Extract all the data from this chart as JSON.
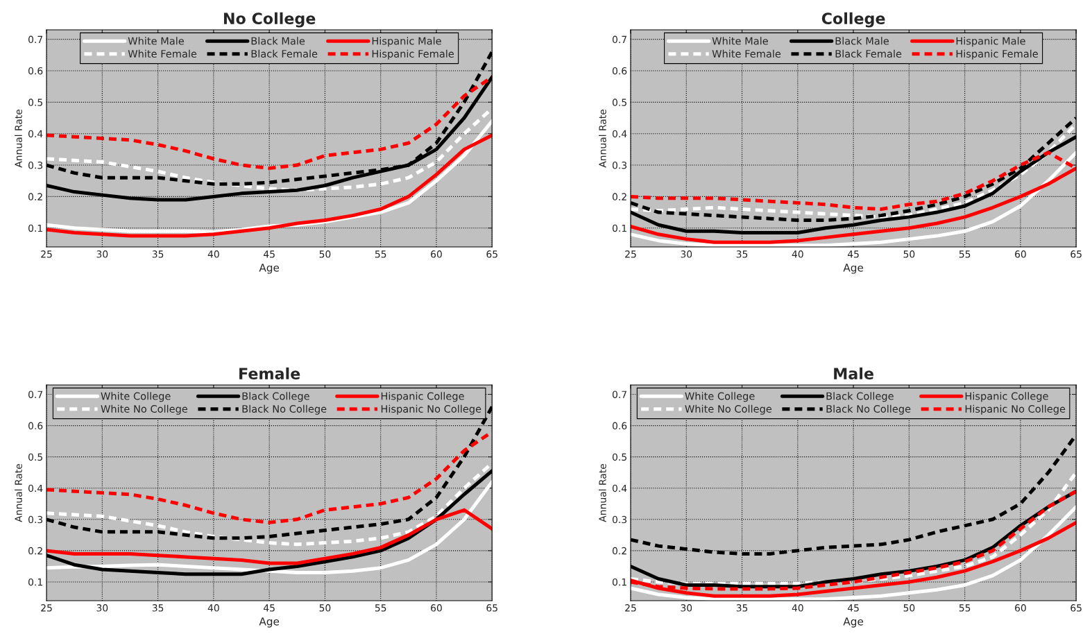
{
  "chart_data": [
    {
      "type": "line",
      "title": "No College",
      "xlabel": "Age",
      "ylabel": "Annual Rate",
      "x": [
        25,
        27.5,
        30,
        32.5,
        35,
        37.5,
        40,
        42.5,
        45,
        47.5,
        50,
        52.5,
        55,
        57.5,
        60,
        62.5,
        65
      ],
      "xlim": [
        25,
        65
      ],
      "xticks": [
        25,
        30,
        35,
        40,
        45,
        50,
        55,
        60,
        65
      ],
      "ylim": [
        0.04,
        0.73
      ],
      "yticks": [
        0.1,
        0.2,
        0.3,
        0.4,
        0.5,
        0.6,
        0.7
      ],
      "grid": true,
      "legend": "top",
      "series": [
        {
          "name": "White Male",
          "color": "#ffffff",
          "line_style": "solid",
          "values": [
            0.11,
            0.1,
            0.095,
            0.09,
            0.09,
            0.09,
            0.088,
            0.095,
            0.106,
            0.11,
            0.12,
            0.135,
            0.15,
            0.18,
            0.25,
            0.33,
            0.44
          ]
        },
        {
          "name": "White Female",
          "color": "#ffffff",
          "line_style": "dashed",
          "values": [
            0.32,
            0.315,
            0.31,
            0.295,
            0.28,
            0.26,
            0.245,
            0.235,
            0.225,
            0.22,
            0.225,
            0.23,
            0.24,
            0.26,
            0.31,
            0.4,
            0.48
          ]
        },
        {
          "name": "Black Male",
          "color": "#000000",
          "line_style": "solid",
          "values": [
            0.235,
            0.215,
            0.205,
            0.195,
            0.19,
            0.19,
            0.2,
            0.21,
            0.215,
            0.22,
            0.235,
            0.26,
            0.28,
            0.3,
            0.35,
            0.45,
            0.58
          ]
        },
        {
          "name": "Black Female",
          "color": "#000000",
          "line_style": "dashed",
          "values": [
            0.3,
            0.275,
            0.26,
            0.26,
            0.26,
            0.25,
            0.24,
            0.24,
            0.245,
            0.255,
            0.265,
            0.275,
            0.285,
            0.3,
            0.37,
            0.5,
            0.66
          ]
        },
        {
          "name": "Hispanic Male",
          "color": "#ff0000",
          "line_style": "solid",
          "values": [
            0.095,
            0.085,
            0.08,
            0.075,
            0.075,
            0.075,
            0.08,
            0.09,
            0.1,
            0.115,
            0.125,
            0.14,
            0.16,
            0.2,
            0.27,
            0.35,
            0.395
          ]
        },
        {
          "name": "Hispanic Female",
          "color": "#ff0000",
          "line_style": "dashed",
          "values": [
            0.395,
            0.39,
            0.385,
            0.38,
            0.365,
            0.345,
            0.32,
            0.3,
            0.29,
            0.3,
            0.33,
            0.34,
            0.35,
            0.37,
            0.43,
            0.52,
            0.58
          ]
        }
      ]
    },
    {
      "type": "line",
      "title": "College",
      "xlabel": "Age",
      "ylabel": "Annual Rate",
      "x": [
        25,
        27.5,
        30,
        32.5,
        35,
        37.5,
        40,
        42.5,
        45,
        47.5,
        50,
        52.5,
        55,
        57.5,
        60,
        62.5,
        65
      ],
      "xlim": [
        25,
        65
      ],
      "xticks": [
        25,
        30,
        35,
        40,
        45,
        50,
        55,
        60,
        65
      ],
      "ylim": [
        0.04,
        0.73
      ],
      "yticks": [
        0.1,
        0.2,
        0.3,
        0.4,
        0.5,
        0.6,
        0.7
      ],
      "grid": true,
      "legend": "top",
      "series": [
        {
          "name": "White Male",
          "color": "#ffffff",
          "line_style": "solid",
          "values": [
            0.08,
            0.06,
            0.05,
            0.045,
            0.045,
            0.045,
            0.045,
            0.045,
            0.05,
            0.055,
            0.065,
            0.075,
            0.09,
            0.12,
            0.17,
            0.25,
            0.34
          ]
        },
        {
          "name": "White Female",
          "color": "#ffffff",
          "line_style": "dashed",
          "values": [
            0.16,
            0.155,
            0.16,
            0.165,
            0.16,
            0.155,
            0.15,
            0.145,
            0.14,
            0.135,
            0.14,
            0.16,
            0.18,
            0.22,
            0.27,
            0.34,
            0.43
          ]
        },
        {
          "name": "Black Male",
          "color": "#000000",
          "line_style": "solid",
          "values": [
            0.15,
            0.11,
            0.09,
            0.09,
            0.085,
            0.085,
            0.085,
            0.1,
            0.11,
            0.125,
            0.135,
            0.15,
            0.17,
            0.21,
            0.28,
            0.34,
            0.39
          ]
        },
        {
          "name": "Black Female",
          "color": "#000000",
          "line_style": "dashed",
          "values": [
            0.18,
            0.15,
            0.145,
            0.14,
            0.135,
            0.13,
            0.125,
            0.125,
            0.13,
            0.14,
            0.155,
            0.175,
            0.2,
            0.24,
            0.29,
            0.37,
            0.45
          ]
        },
        {
          "name": "Hispanic Male",
          "color": "#ff0000",
          "line_style": "solid",
          "values": [
            0.105,
            0.08,
            0.065,
            0.055,
            0.055,
            0.055,
            0.06,
            0.07,
            0.08,
            0.09,
            0.1,
            0.115,
            0.135,
            0.165,
            0.2,
            0.24,
            0.29
          ]
        },
        {
          "name": "Hispanic Female",
          "color": "#ff0000",
          "line_style": "dashed",
          "values": [
            0.2,
            0.195,
            0.195,
            0.195,
            0.19,
            0.185,
            0.18,
            0.175,
            0.165,
            0.16,
            0.175,
            0.185,
            0.21,
            0.25,
            0.3,
            0.34,
            0.29
          ]
        }
      ]
    },
    {
      "type": "line",
      "title": "Female",
      "xlabel": "Age",
      "ylabel": "Annual Rate",
      "x": [
        25,
        27.5,
        30,
        32.5,
        35,
        37.5,
        40,
        42.5,
        45,
        47.5,
        50,
        52.5,
        55,
        57.5,
        60,
        62.5,
        65
      ],
      "xlim": [
        25,
        65
      ],
      "xticks": [
        25,
        30,
        35,
        40,
        45,
        50,
        55,
        60,
        65
      ],
      "ylim": [
        0.04,
        0.73
      ],
      "yticks": [
        0.1,
        0.2,
        0.3,
        0.4,
        0.5,
        0.6,
        0.7
      ],
      "grid": true,
      "legend": "top",
      "series": [
        {
          "name": "White College",
          "color": "#ffffff",
          "line_style": "solid",
          "values": [
            0.145,
            0.148,
            0.15,
            0.153,
            0.155,
            0.15,
            0.145,
            0.14,
            0.135,
            0.13,
            0.13,
            0.135,
            0.145,
            0.17,
            0.22,
            0.3,
            0.42
          ]
        },
        {
          "name": "White No College",
          "color": "#ffffff",
          "line_style": "dashed",
          "values": [
            0.32,
            0.315,
            0.31,
            0.295,
            0.28,
            0.26,
            0.245,
            0.235,
            0.225,
            0.22,
            0.225,
            0.23,
            0.24,
            0.26,
            0.31,
            0.4,
            0.48
          ]
        },
        {
          "name": "Black College",
          "color": "#000000",
          "line_style": "solid",
          "values": [
            0.185,
            0.155,
            0.14,
            0.135,
            0.13,
            0.125,
            0.125,
            0.125,
            0.14,
            0.15,
            0.165,
            0.18,
            0.2,
            0.24,
            0.3,
            0.38,
            0.455
          ]
        },
        {
          "name": "Black No College",
          "color": "#000000",
          "line_style": "dashed",
          "values": [
            0.3,
            0.275,
            0.26,
            0.26,
            0.26,
            0.25,
            0.24,
            0.24,
            0.245,
            0.255,
            0.265,
            0.275,
            0.285,
            0.3,
            0.37,
            0.5,
            0.66
          ]
        },
        {
          "name": "Hispanic College",
          "color": "#ff0000",
          "line_style": "solid",
          "values": [
            0.2,
            0.19,
            0.19,
            0.19,
            0.185,
            0.18,
            0.175,
            0.17,
            0.16,
            0.16,
            0.175,
            0.19,
            0.21,
            0.25,
            0.3,
            0.33,
            0.27
          ]
        },
        {
          "name": "Hispanic No College",
          "color": "#ff0000",
          "line_style": "dashed",
          "values": [
            0.395,
            0.39,
            0.385,
            0.38,
            0.365,
            0.345,
            0.32,
            0.3,
            0.29,
            0.3,
            0.33,
            0.34,
            0.35,
            0.37,
            0.43,
            0.52,
            0.58
          ]
        }
      ]
    },
    {
      "type": "line",
      "title": "Male",
      "xlabel": "Age",
      "ylabel": "Annual Rate",
      "x": [
        25,
        27.5,
        30,
        32.5,
        35,
        37.5,
        40,
        42.5,
        45,
        47.5,
        50,
        52.5,
        55,
        57.5,
        60,
        62.5,
        65
      ],
      "xlim": [
        25,
        65
      ],
      "xticks": [
        25,
        30,
        35,
        40,
        45,
        50,
        55,
        60,
        65
      ],
      "ylim": [
        0.04,
        0.73
      ],
      "yticks": [
        0.1,
        0.2,
        0.3,
        0.4,
        0.5,
        0.6,
        0.7
      ],
      "grid": true,
      "legend": "top",
      "series": [
        {
          "name": "White College",
          "color": "#ffffff",
          "line_style": "solid",
          "values": [
            0.08,
            0.06,
            0.05,
            0.045,
            0.045,
            0.045,
            0.045,
            0.045,
            0.05,
            0.055,
            0.065,
            0.075,
            0.09,
            0.12,
            0.17,
            0.25,
            0.34
          ]
        },
        {
          "name": "White No College",
          "color": "#ffffff",
          "line_style": "dashed",
          "values": [
            0.11,
            0.1,
            0.095,
            0.095,
            0.095,
            0.095,
            0.095,
            0.1,
            0.1,
            0.11,
            0.12,
            0.135,
            0.15,
            0.18,
            0.25,
            0.33,
            0.45
          ]
        },
        {
          "name": "Black College",
          "color": "#000000",
          "line_style": "solid",
          "values": [
            0.15,
            0.11,
            0.09,
            0.09,
            0.085,
            0.085,
            0.085,
            0.1,
            0.11,
            0.125,
            0.135,
            0.15,
            0.17,
            0.21,
            0.28,
            0.34,
            0.39
          ]
        },
        {
          "name": "Black No College",
          "color": "#000000",
          "line_style": "dashed",
          "values": [
            0.235,
            0.215,
            0.205,
            0.195,
            0.19,
            0.19,
            0.2,
            0.21,
            0.215,
            0.22,
            0.235,
            0.26,
            0.28,
            0.3,
            0.35,
            0.45,
            0.57
          ]
        },
        {
          "name": "Hispanic College",
          "color": "#ff0000",
          "line_style": "solid",
          "values": [
            0.105,
            0.08,
            0.065,
            0.055,
            0.055,
            0.055,
            0.06,
            0.07,
            0.08,
            0.09,
            0.1,
            0.115,
            0.135,
            0.165,
            0.2,
            0.24,
            0.29
          ]
        },
        {
          "name": "Hispanic No College",
          "color": "#ff0000",
          "line_style": "dashed",
          "values": [
            0.1,
            0.085,
            0.08,
            0.078,
            0.078,
            0.078,
            0.08,
            0.09,
            0.1,
            0.115,
            0.13,
            0.145,
            0.165,
            0.2,
            0.27,
            0.34,
            0.39
          ]
        }
      ]
    }
  ]
}
